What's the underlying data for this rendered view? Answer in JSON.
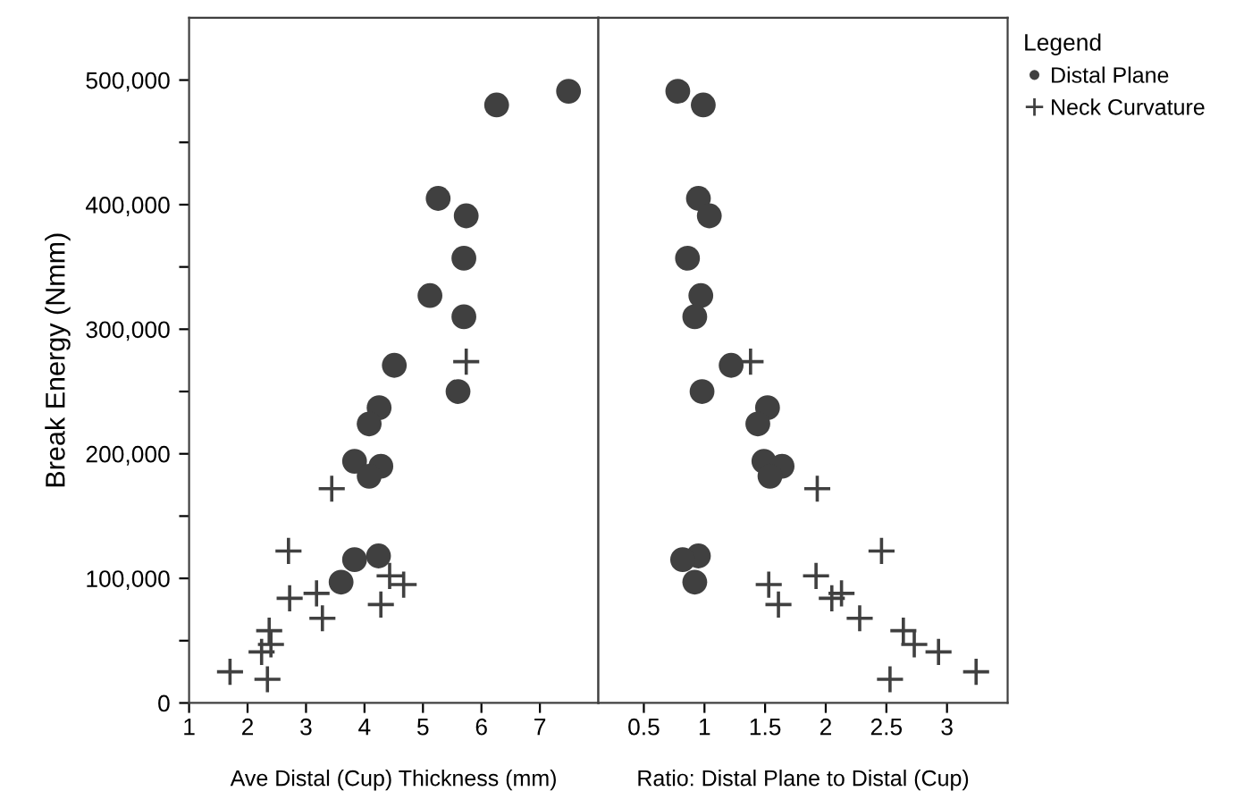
{
  "chart_data": [
    {
      "type": "scatter",
      "xlabel": "Ave Distal (Cup) Thickness (mm)",
      "ylabel": "Break Energy (Nmm)",
      "xlim": [
        1,
        8
      ],
      "xticks": [
        1,
        2,
        3,
        4,
        5,
        6,
        7
      ],
      "ylim": [
        0,
        550000
      ],
      "yticks": [
        0,
        {
          "value": 50000,
          "label": null
        },
        {
          "value": 100000,
          "label": "100,000"
        },
        {
          "value": 150000,
          "label": null
        },
        {
          "value": 200000,
          "label": "200,000"
        },
        {
          "value": 250000,
          "label": null
        },
        {
          "value": 300000,
          "label": "300,000"
        },
        {
          "value": 350000,
          "label": null
        },
        {
          "value": 400000,
          "label": "400,000"
        },
        {
          "value": 450000,
          "label": null
        },
        {
          "value": 500000,
          "label": "500,000"
        }
      ],
      "grid": false,
      "series": [
        {
          "color": "#404040",
          "marker": "circle",
          "x": [
            7.49,
            6.26,
            5.26,
            5.74,
            5.7,
            5.12,
            5.7,
            4.51,
            5.6,
            4.25,
            4.08,
            3.83,
            4.28,
            4.08,
            4.24,
            3.83,
            3.6
          ],
          "values": [
            491000,
            480000,
            405000,
            391000,
            357000,
            327000,
            310000,
            271000,
            250000,
            237000,
            224000,
            194000,
            190000,
            182000,
            118000,
            115000,
            97000
          ]
        },
        {
          "color": "#404040",
          "marker": "cross",
          "x": [
            5.74,
            3.44,
            2.7,
            4.43,
            4.67,
            3.18,
            2.72,
            4.28,
            3.28,
            2.37,
            2.4,
            2.24,
            1.7,
            2.34
          ],
          "values": [
            274000,
            172000,
            122000,
            102000,
            95000,
            88000,
            84000,
            79000,
            68000,
            58000,
            47000,
            41000,
            25000,
            19000
          ]
        }
      ]
    },
    {
      "type": "scatter",
      "xlabel": "Ratio: Distal Plane to Distal (Cup)",
      "xlim": [
        0.125,
        3.5
      ],
      "xticks": [
        0.5,
        1,
        1.5,
        2,
        2.5,
        3
      ],
      "ylim": [
        0,
        550000
      ],
      "tick_labels": "x",
      "grid": false,
      "legend": "right",
      "legend_title": "Legend",
      "series": [
        {
          "name": "Distal Plane",
          "color": "#404040",
          "marker": "circle",
          "x": [
            0.78,
            0.99,
            0.95,
            1.04,
            0.86,
            0.97,
            0.92,
            1.22,
            0.98,
            1.52,
            1.44,
            1.49,
            1.64,
            1.54,
            0.95,
            0.82,
            0.92
          ],
          "values": [
            491000,
            480000,
            405000,
            391000,
            357000,
            327000,
            310000,
            271000,
            250000,
            237000,
            224000,
            194000,
            190000,
            182000,
            118000,
            115000,
            97000
          ]
        },
        {
          "name": "Neck Curvature",
          "color": "#404040",
          "marker": "cross",
          "x": [
            1.38,
            1.93,
            2.46,
            1.92,
            1.53,
            2.13,
            2.05,
            1.61,
            2.28,
            2.64,
            2.73,
            2.93,
            3.24,
            2.53
          ],
          "values": [
            274000,
            172000,
            122000,
            102000,
            95000,
            88000,
            84000,
            79000,
            68000,
            58000,
            47000,
            41000,
            25000,
            19000
          ]
        }
      ]
    }
  ]
}
